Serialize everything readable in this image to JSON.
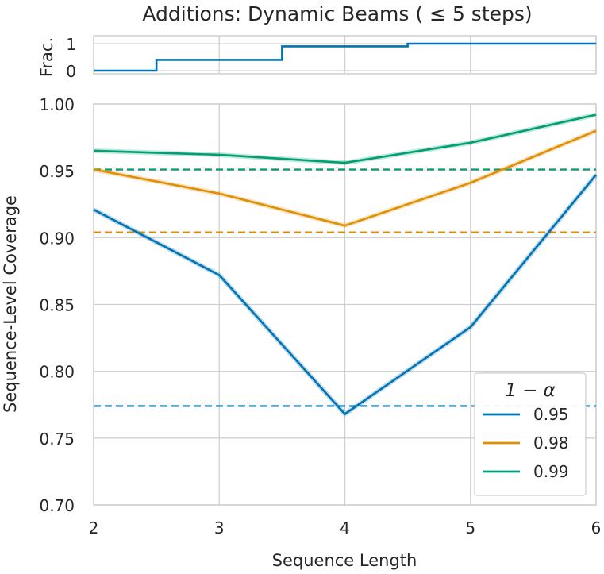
{
  "chart_data": [
    {
      "type": "line",
      "panel": "fraction",
      "title": "Additions: Dynamic Beams ($\\leq 5$ steps)",
      "title_display": "Additions: Dynamic Beams ( ≤ 5 steps)",
      "ylabel": "Frac.",
      "yticks": [
        "0",
        "1"
      ],
      "ylim": [
        0,
        1
      ],
      "xlim": [
        2,
        6
      ],
      "step": true,
      "series": [
        {
          "color": "#0173b2",
          "x": [
            2,
            2.5,
            3.5,
            4.5,
            6
          ],
          "y": [
            0,
            0.4,
            0.9,
            1.0,
            1.0
          ]
        }
      ]
    },
    {
      "type": "line",
      "panel": "coverage",
      "xlabel": "Sequence Length",
      "ylabel": "Sequence-Level Coverage",
      "xticks": [
        "2",
        "3",
        "4",
        "5",
        "6"
      ],
      "yticks": [
        "0.70",
        "0.75",
        "0.80",
        "0.85",
        "0.90",
        "0.95",
        "1.00"
      ],
      "xlim": [
        2,
        6
      ],
      "ylim": [
        0.7,
        1.0
      ],
      "grid": true,
      "legend": {
        "title": "$1-\\alpha$",
        "title_display": "1 − α",
        "placement": "bottom-right",
        "entries": [
          "0.95",
          "0.98",
          "0.99"
        ]
      },
      "x": [
        2,
        3,
        4,
        5,
        6
      ],
      "series": [
        {
          "name": "0.95",
          "color": "#0173b2",
          "values": [
            0.921,
            0.872,
            0.768,
            0.833,
            0.947
          ],
          "baseline": 0.774
        },
        {
          "name": "0.98",
          "color": "#de8f05",
          "values": [
            0.951,
            0.933,
            0.909,
            0.941,
            0.98
          ],
          "baseline": 0.904
        },
        {
          "name": "0.99",
          "color": "#029e73",
          "values": [
            0.965,
            0.962,
            0.956,
            0.971,
            0.992
          ],
          "baseline": 0.951
        }
      ]
    }
  ]
}
